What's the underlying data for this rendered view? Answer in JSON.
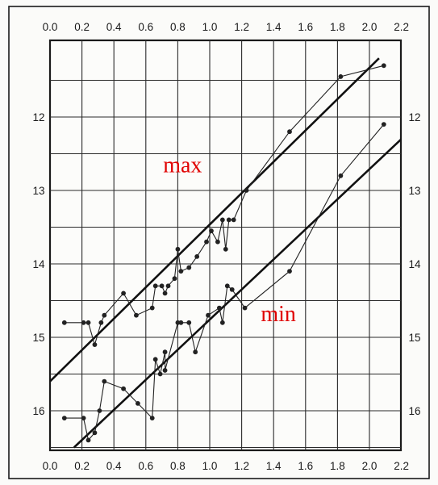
{
  "chart_data": {
    "type": "line",
    "title": "",
    "xlabel": "",
    "ylabel": "",
    "xlim": [
      0.0,
      2.2
    ],
    "ylim": [
      11.2,
      16.5
    ],
    "y_inverted": true,
    "grid": true,
    "x_ticks": [
      "0.0",
      "0.2",
      "0.4",
      "0.6",
      "0.8",
      "1.0",
      "1.2",
      "1.4",
      "1.6",
      "1.8",
      "2.0",
      "2.2"
    ],
    "y_ticks": [
      "12",
      "13",
      "14",
      "15",
      "16"
    ],
    "annotations": [
      {
        "text": "max",
        "x": 0.83,
        "y": 12.75,
        "color": "#e00000"
      },
      {
        "text": "min",
        "x": 1.43,
        "y": 14.78,
        "color": "#e00000"
      }
    ],
    "series": [
      {
        "kind": "data",
        "color": "#222222",
        "points": [
          [
            0.09,
            14.8
          ],
          [
            0.21,
            14.8
          ],
          [
            0.24,
            14.8
          ],
          [
            0.28,
            15.1
          ],
          [
            0.32,
            14.8
          ],
          [
            0.34,
            14.7
          ],
          [
            0.46,
            14.4
          ],
          [
            0.54,
            14.7
          ],
          [
            0.64,
            14.6
          ],
          [
            0.66,
            14.3
          ],
          [
            0.7,
            14.3
          ],
          [
            0.72,
            14.4
          ],
          [
            0.74,
            14.3
          ],
          [
            0.78,
            14.2
          ],
          [
            0.8,
            13.8
          ],
          [
            0.82,
            14.1
          ],
          [
            0.87,
            14.05
          ],
          [
            0.92,
            13.9
          ],
          [
            0.98,
            13.7
          ],
          [
            1.01,
            13.55
          ],
          [
            1.05,
            13.7
          ],
          [
            1.08,
            13.4
          ],
          [
            1.1,
            13.8
          ],
          [
            1.12,
            13.4
          ],
          [
            1.15,
            13.4
          ],
          [
            1.23,
            13.0
          ],
          [
            1.5,
            12.2
          ],
          [
            1.82,
            11.45
          ],
          [
            2.09,
            11.3
          ]
        ]
      },
      {
        "kind": "data",
        "color": "#222222",
        "points": [
          [
            0.09,
            16.1
          ],
          [
            0.21,
            16.1
          ],
          [
            0.24,
            16.4
          ],
          [
            0.28,
            16.3
          ],
          [
            0.31,
            16.0
          ],
          [
            0.34,
            15.6
          ],
          [
            0.46,
            15.7
          ],
          [
            0.55,
            15.9
          ],
          [
            0.64,
            16.1
          ],
          [
            0.66,
            15.3
          ],
          [
            0.69,
            15.5
          ],
          [
            0.72,
            15.2
          ],
          [
            0.72,
            15.45
          ],
          [
            0.8,
            14.8
          ],
          [
            0.82,
            14.8
          ],
          [
            0.87,
            14.8
          ],
          [
            0.91,
            15.2
          ],
          [
            0.99,
            14.7
          ],
          [
            1.06,
            14.6
          ],
          [
            1.08,
            14.8
          ],
          [
            1.11,
            14.3
          ],
          [
            1.14,
            14.35
          ],
          [
            1.22,
            14.6
          ],
          [
            1.5,
            14.1
          ],
          [
            1.82,
            12.8
          ],
          [
            2.09,
            12.1
          ]
        ]
      },
      {
        "kind": "fit",
        "color": "#111111",
        "points": [
          [
            0.0,
            15.6
          ],
          [
            2.06,
            11.2
          ]
        ]
      },
      {
        "kind": "fit",
        "color": "#111111",
        "points": [
          [
            0.15,
            16.5
          ],
          [
            2.2,
            12.3
          ]
        ]
      }
    ]
  }
}
